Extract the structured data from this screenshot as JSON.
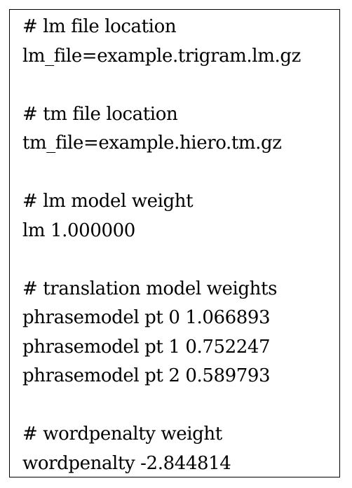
{
  "document": {
    "lines": [
      "# lm file location",
      "lm_file=example.trigram.lm.gz",
      "",
      "# tm file location",
      "tm_file=example.hiero.tm.gz",
      "",
      "# lm model weight",
      "lm 1.000000",
      "",
      "# translation model weights",
      "phrasemodel pt 0 1.066893",
      "phrasemodel pt 1 0.752247",
      "phrasemodel pt 2 0.589793",
      "",
      "# wordpenalty weight",
      "wordpenalty -2.844814"
    ]
  }
}
